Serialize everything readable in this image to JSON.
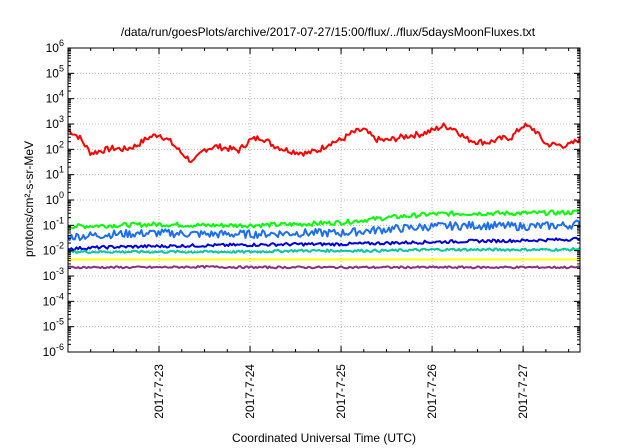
{
  "chart_data": {
    "type": "line",
    "title": "/data/run/goesPlots/archive/2017-07-27/15:00/flux/../flux/5daysMoonFluxes.txt",
    "xlabel": "Coordinated Universal Time (UTC)",
    "ylabel": "protons/cm²-s-sr-MeV",
    "yscale": "log",
    "ylim": [
      1e-06,
      1000000.0
    ],
    "xlim": [
      "2017-07-22T00:00",
      "2017-07-27T15:00"
    ],
    "grid": true,
    "legend": "none",
    "x_tick_labels": [
      "2017-7-23",
      "2017-7-24",
      "2017-7-25",
      "2017-7-26",
      "2017-7-27"
    ],
    "x_ticks": [
      "2017-07-23T00:00",
      "2017-07-24T00:00",
      "2017-07-25T00:00",
      "2017-07-26T00:00",
      "2017-07-27T00:00"
    ],
    "y_tick_exponents": [
      -6,
      -5,
      -4,
      -3,
      -2,
      -1,
      0,
      1,
      2,
      3,
      4,
      5,
      6
    ],
    "series": [
      {
        "color": "#ff0000",
        "x": [
          "2017-07-22T00:00",
          "2017-07-22T03:00",
          "2017-07-22T06:00",
          "2017-07-22T09:00",
          "2017-07-22T12:00",
          "2017-07-22T15:00",
          "2017-07-22T18:00",
          "2017-07-22T21:00",
          "2017-07-23T00:00",
          "2017-07-23T03:00",
          "2017-07-23T06:00",
          "2017-07-23T09:00",
          "2017-07-23T12:00",
          "2017-07-23T15:00",
          "2017-07-23T18:00",
          "2017-07-23T21:00",
          "2017-07-24T00:00",
          "2017-07-24T03:00",
          "2017-07-24T06:00",
          "2017-07-24T09:00",
          "2017-07-24T12:00",
          "2017-07-24T15:00",
          "2017-07-24T18:00",
          "2017-07-24T21:00",
          "2017-07-25T00:00",
          "2017-07-25T03:00",
          "2017-07-25T06:00",
          "2017-07-25T09:00",
          "2017-07-25T12:00",
          "2017-07-25T15:00",
          "2017-07-25T18:00",
          "2017-07-25T21:00",
          "2017-07-26T00:00",
          "2017-07-26T03:00",
          "2017-07-26T06:00",
          "2017-07-26T09:00",
          "2017-07-26T12:00",
          "2017-07-26T15:00",
          "2017-07-26T18:00",
          "2017-07-26T21:00",
          "2017-07-27T00:00",
          "2017-07-27T03:00",
          "2017-07-27T06:00",
          "2017-07-27T09:00",
          "2017-07-27T12:00",
          "2017-07-27T15:00"
        ],
        "values": [
          600,
          300,
          70,
          90,
          110,
          100,
          140,
          280,
          400,
          200,
          70,
          30,
          100,
          130,
          110,
          90,
          230,
          300,
          150,
          100,
          80,
          70,
          90,
          180,
          230,
          450,
          600,
          250,
          220,
          280,
          350,
          400,
          550,
          850,
          650,
          260,
          200,
          190,
          260,
          300,
          900,
          600,
          160,
          150,
          140,
          260
        ]
      },
      {
        "color": "#00ff00",
        "x": [
          "2017-07-22T00:00",
          "2017-07-22T12:00",
          "2017-07-23T00:00",
          "2017-07-23T12:00",
          "2017-07-24T00:00",
          "2017-07-24T12:00",
          "2017-07-25T00:00",
          "2017-07-25T12:00",
          "2017-07-26T00:00",
          "2017-07-26T12:00",
          "2017-07-27T00:00",
          "2017-07-27T12:00",
          "2017-07-27T15:00"
        ],
        "values": [
          0.09,
          0.1,
          0.11,
          0.1,
          0.1,
          0.11,
          0.13,
          0.2,
          0.28,
          0.3,
          0.3,
          0.32,
          0.35
        ]
      },
      {
        "color": "#1e6ff0",
        "x": [
          "2017-07-22T00:00",
          "2017-07-22T12:00",
          "2017-07-23T00:00",
          "2017-07-23T12:00",
          "2017-07-24T00:00",
          "2017-07-24T12:00",
          "2017-07-25T00:00",
          "2017-07-25T12:00",
          "2017-07-26T00:00",
          "2017-07-26T12:00",
          "2017-07-27T00:00",
          "2017-07-27T12:00",
          "2017-07-27T15:00"
        ],
        "values": [
          0.035,
          0.045,
          0.05,
          0.045,
          0.045,
          0.05,
          0.05,
          0.07,
          0.09,
          0.1,
          0.09,
          0.1,
          0.12
        ]
      },
      {
        "color": "#0000dd",
        "x": [
          "2017-07-22T00:00",
          "2017-07-22T12:00",
          "2017-07-23T00:00",
          "2017-07-23T12:00",
          "2017-07-24T00:00",
          "2017-07-24T12:00",
          "2017-07-25T00:00",
          "2017-07-25T12:00",
          "2017-07-26T00:00",
          "2017-07-26T12:00",
          "2017-07-27T00:00",
          "2017-07-27T12:00",
          "2017-07-27T15:00"
        ],
        "values": [
          0.012,
          0.014,
          0.015,
          0.016,
          0.017,
          0.018,
          0.018,
          0.02,
          0.022,
          0.024,
          0.025,
          0.028,
          0.03
        ]
      },
      {
        "color": "#00c8a0",
        "x": [
          "2017-07-22T00:00",
          "2017-07-22T12:00",
          "2017-07-23T00:00",
          "2017-07-23T12:00",
          "2017-07-24T00:00",
          "2017-07-24T12:00",
          "2017-07-25T00:00",
          "2017-07-25T12:00",
          "2017-07-26T00:00",
          "2017-07-26T12:00",
          "2017-07-27T00:00",
          "2017-07-27T12:00",
          "2017-07-27T15:00"
        ],
        "values": [
          0.009,
          0.009,
          0.009,
          0.009,
          0.009,
          0.01,
          0.01,
          0.01,
          0.011,
          0.011,
          0.011,
          0.011,
          0.012
        ]
      },
      {
        "color": "#ffff00",
        "x": [
          "2017-07-22T00:00",
          "2017-07-27T15:00"
        ],
        "values": [
          0.0045,
          0.0045
        ]
      },
      {
        "color": "#8b2f7a",
        "x": [
          "2017-07-22T00:00",
          "2017-07-22T12:00",
          "2017-07-23T00:00",
          "2017-07-23T12:00",
          "2017-07-24T00:00",
          "2017-07-24T12:00",
          "2017-07-25T00:00",
          "2017-07-25T12:00",
          "2017-07-26T00:00",
          "2017-07-26T12:00",
          "2017-07-27T00:00",
          "2017-07-27T12:00",
          "2017-07-27T15:00"
        ],
        "values": [
          0.0022,
          0.0022,
          0.0022,
          0.0023,
          0.0022,
          0.0022,
          0.0022,
          0.0022,
          0.0022,
          0.0022,
          0.0022,
          0.0022,
          0.0022
        ]
      }
    ]
  }
}
